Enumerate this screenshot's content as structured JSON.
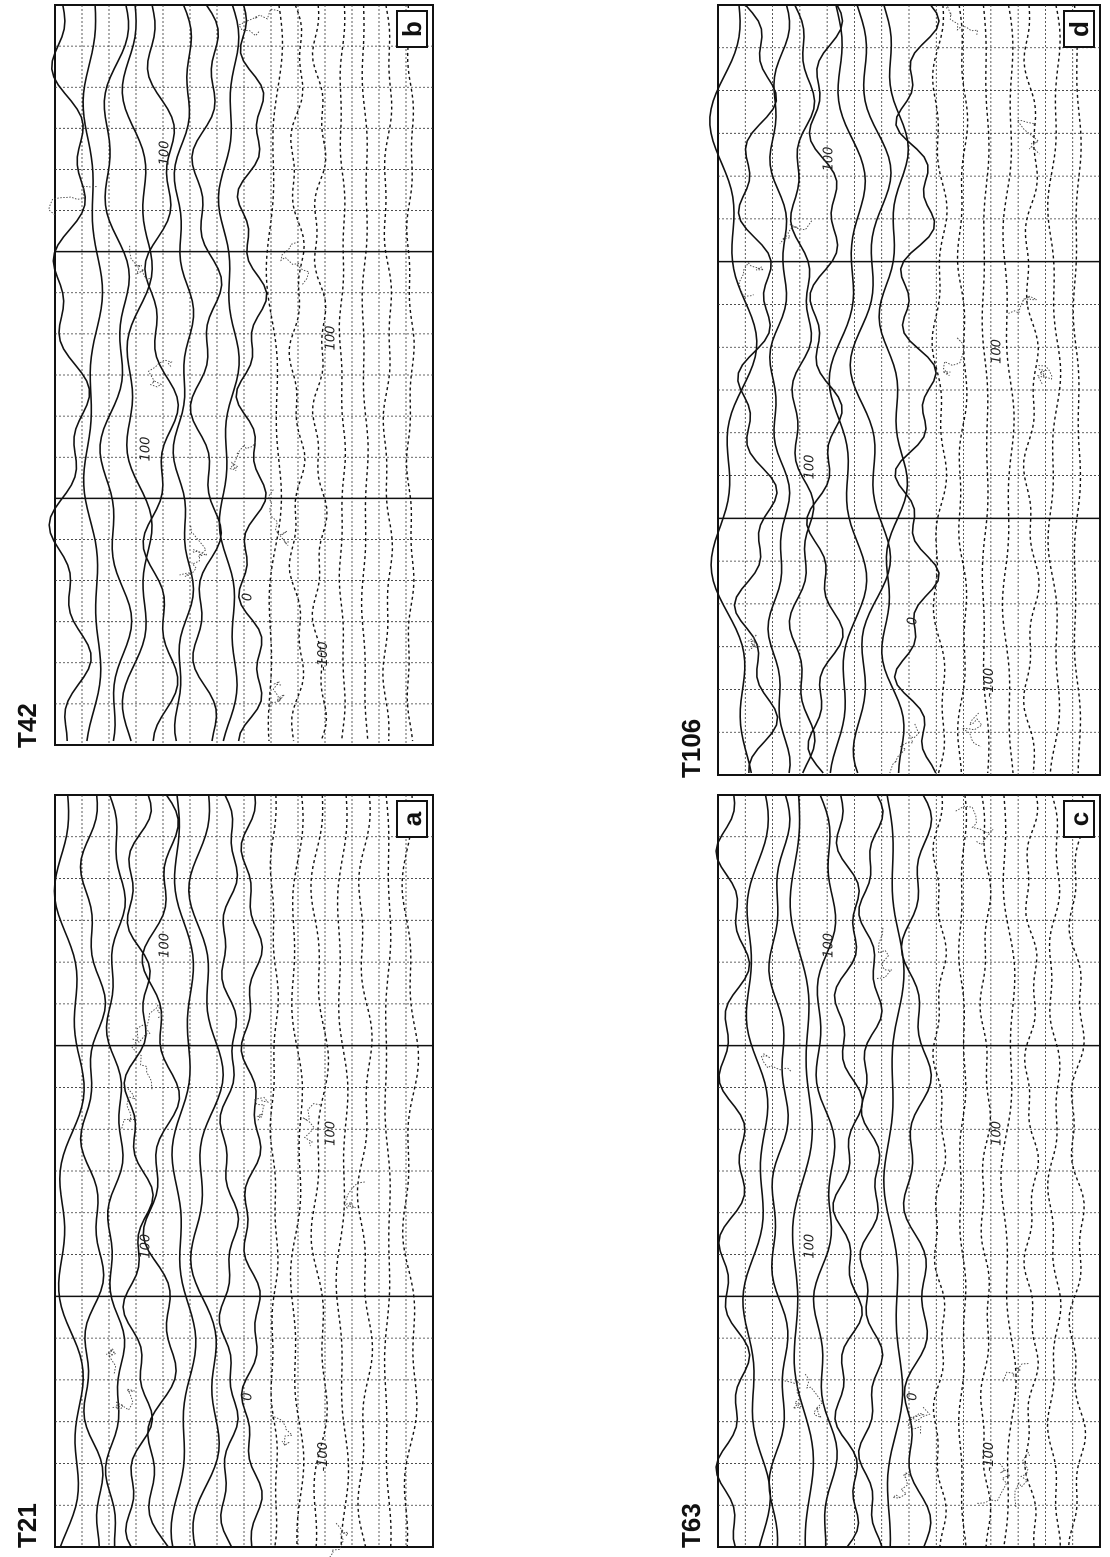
{
  "panels": [
    {
      "title": "T21",
      "letter": "a",
      "contour_labels": [
        "100",
        "100",
        "0",
        "100",
        "-100"
      ]
    },
    {
      "title": "T42",
      "letter": "b",
      "contour_labels": [
        "100",
        "100",
        "0",
        "100",
        "-100"
      ]
    },
    {
      "title": "T63",
      "letter": "c",
      "contour_labels": [
        "100",
        "100",
        "0",
        "100",
        "-100"
      ]
    },
    {
      "title": "T106",
      "letter": "d",
      "contour_labels": [
        "100",
        "100",
        "0",
        "100",
        "-100"
      ]
    }
  ]
}
